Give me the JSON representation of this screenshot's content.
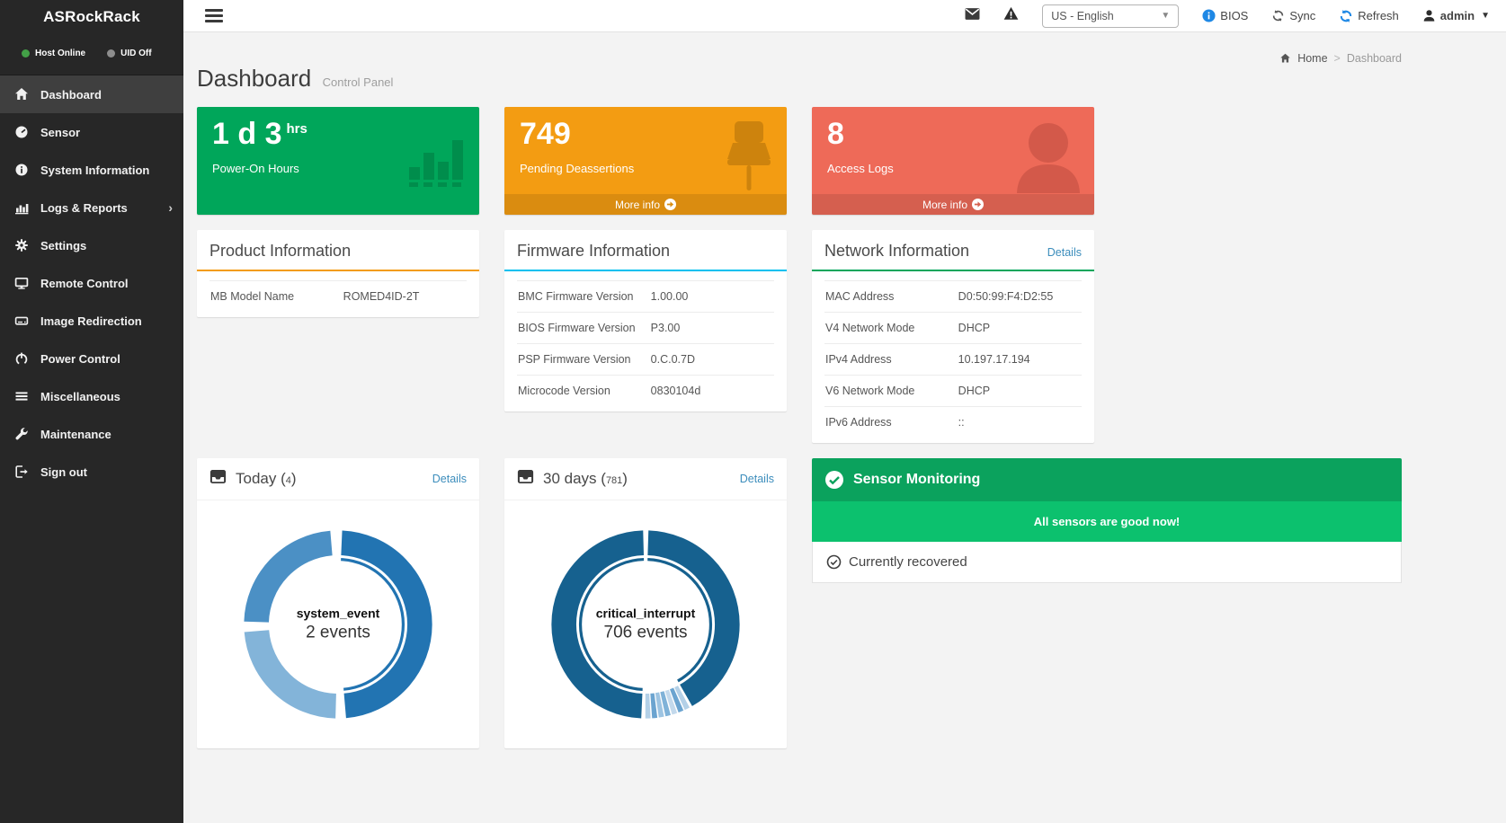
{
  "brand": {
    "logo_text": "ASRockRack"
  },
  "sidebar": {
    "status": {
      "host": "Host Online",
      "uid": "UID Off",
      "host_dot_color": "#43a047",
      "uid_dot_color": "#8d8d8d"
    },
    "items": [
      {
        "label": "Dashboard"
      },
      {
        "label": "Sensor"
      },
      {
        "label": "System Information"
      },
      {
        "label": "Logs & Reports"
      },
      {
        "label": "Settings"
      },
      {
        "label": "Remote Control"
      },
      {
        "label": "Image Redirection"
      },
      {
        "label": "Power Control"
      },
      {
        "label": "Miscellaneous"
      },
      {
        "label": "Maintenance"
      },
      {
        "label": "Sign out"
      }
    ]
  },
  "topbar": {
    "language": "US - English",
    "bios_label": "BIOS",
    "sync_label": "Sync",
    "refresh_label": "Refresh",
    "user": "admin"
  },
  "breadcrumb": {
    "home": "Home",
    "separator": ">",
    "current": "Dashboard"
  },
  "page": {
    "title": "Dashboard",
    "subtitle": "Control Panel"
  },
  "cards": {
    "power_on": {
      "value": "1 d 3",
      "unit": "hrs",
      "label": "Power-On Hours",
      "color": "#00a65a"
    },
    "deassertions": {
      "value": "749",
      "label": "Pending Deassertions",
      "more_info": "More info",
      "color": "#f39c12"
    },
    "access_logs": {
      "value": "8",
      "label": "Access Logs",
      "more_info": "More info",
      "color": "#ee6a58"
    }
  },
  "panels": {
    "product": {
      "title": "Product Information",
      "accent": "#f39c12",
      "rows": [
        [
          "MB Model Name",
          "ROMED4ID-2T"
        ]
      ]
    },
    "firmware": {
      "title": "Firmware Information",
      "accent": "#00c0ef",
      "rows": [
        [
          "BMC Firmware Version",
          "1.00.00"
        ],
        [
          "BIOS Firmware Version",
          "P3.00"
        ],
        [
          "PSP Firmware Version",
          "0.C.0.7D"
        ],
        [
          "Microcode Version",
          "0830104d"
        ]
      ]
    },
    "network": {
      "title": "Network Information",
      "accent": "#00a65a",
      "details_label": "Details",
      "rows": [
        [
          "MAC Address",
          "D0:50:99:F4:D2:55"
        ],
        [
          "V4 Network Mode",
          "DHCP"
        ],
        [
          "IPv4 Address",
          "10.197.17.194"
        ],
        [
          "V6 Network Mode",
          "DHCP"
        ],
        [
          "IPv6 Address",
          "::"
        ]
      ]
    }
  },
  "events_today": {
    "title": "Today",
    "count": "4",
    "details_label": "Details",
    "center_title": "system_event",
    "center_value": "2 events",
    "chart": {
      "type": "pie",
      "total_events": 4,
      "highlighted": {
        "name": "system_event",
        "events": 2
      },
      "segments": [
        {
          "from": 0.7,
          "len": 48.0,
          "color": "#2274b2"
        },
        {
          "from": 50.5,
          "len": 23.3,
          "color": "#83b4d9"
        },
        {
          "from": 75.6,
          "len": 23.2,
          "color": "#4b90c5"
        }
      ],
      "inner_ring": [
        {
          "from": 0.7,
          "len": 48.0,
          "color": "#2274b2"
        }
      ]
    }
  },
  "events_30days": {
    "title": "30 days",
    "count": "781",
    "details_label": "Details",
    "center_title": "critical_interrupt",
    "center_value": "706 events",
    "chart": {
      "type": "pie",
      "total_events": 781,
      "highlighted": {
        "name": "critical_interrupt",
        "events": 706
      },
      "segments": [
        {
          "from": 0.5,
          "len": 41.3,
          "color": "#16618f"
        },
        {
          "from": 42.3,
          "len": 0.9,
          "color": "#b3d0e7"
        },
        {
          "from": 43.45,
          "len": 0.9,
          "color": "#6ba4d0"
        },
        {
          "from": 44.6,
          "len": 0.9,
          "color": "#c3d9ec"
        },
        {
          "from": 45.75,
          "len": 0.9,
          "color": "#7fb2d8"
        },
        {
          "from": 46.9,
          "len": 0.9,
          "color": "#9dc4e2"
        },
        {
          "from": 48.05,
          "len": 0.9,
          "color": "#6ba4d0"
        },
        {
          "from": 49.2,
          "len": 0.9,
          "color": "#b3d0e7"
        },
        {
          "from": 50.8,
          "len": 48.9,
          "color": "#16618f"
        }
      ],
      "inner_ring": [
        {
          "from": 0.5,
          "len": 41.3,
          "color": "#16618f"
        },
        {
          "from": 50.8,
          "len": 48.9,
          "color": "#16618f"
        }
      ]
    }
  },
  "sensor_monitoring": {
    "title": "Sensor Monitoring",
    "banner": "All sensors are good now!",
    "status": "Currently recovered"
  }
}
